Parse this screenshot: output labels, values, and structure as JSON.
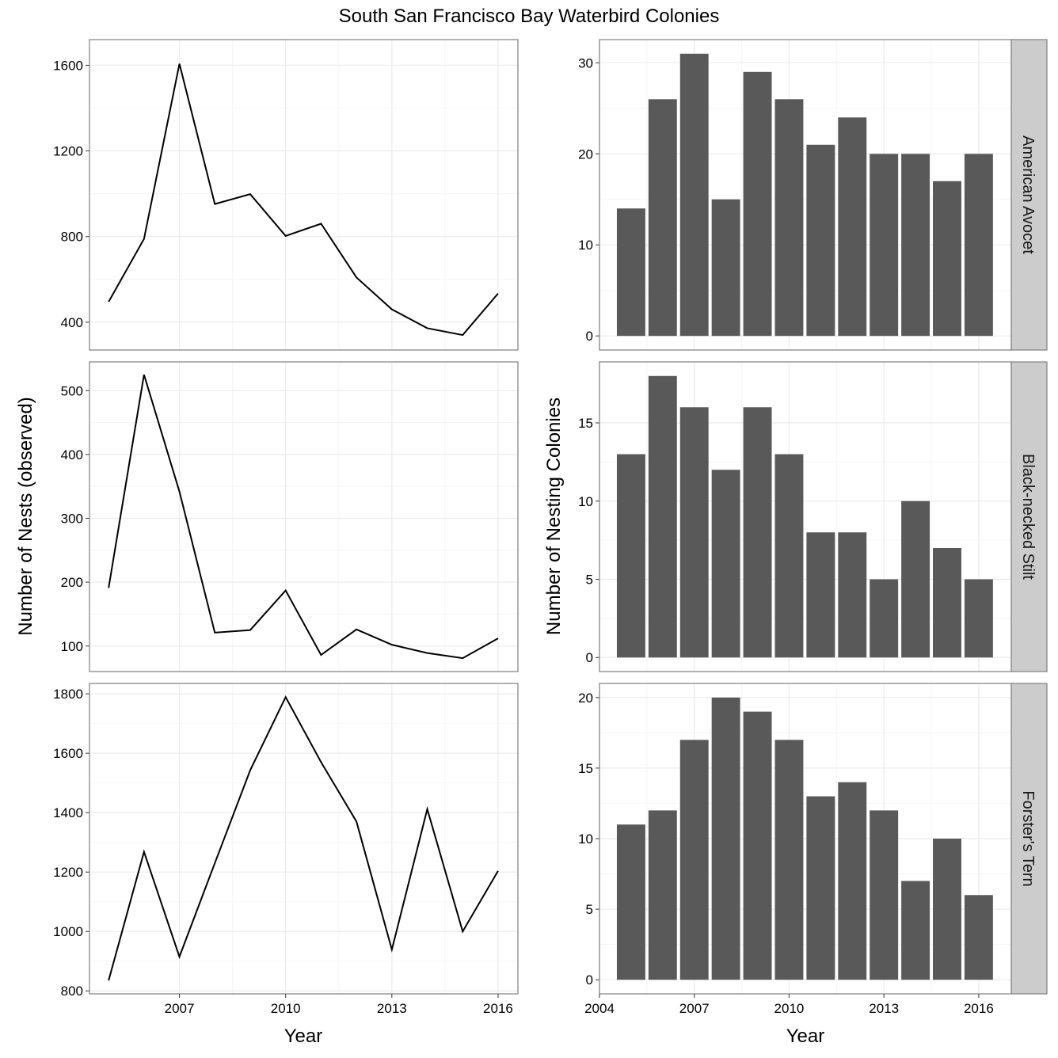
{
  "title": "South San Francisco Bay Waterbird Colonies",
  "colors": {
    "bar": "#595959",
    "line": "#000000",
    "strip": "#cccccc",
    "grid": "#ebebeb",
    "border": "#7f7f7f"
  },
  "chart_data": [
    {
      "type": "line",
      "ylabel": "Number of Nests (observed)",
      "xlabel": "Year",
      "x": [
        2005,
        2006,
        2007,
        2008,
        2009,
        2010,
        2011,
        2012,
        2013,
        2014,
        2015,
        2016
      ],
      "xticks": [
        2007,
        2010,
        2013,
        2016
      ],
      "grid": true,
      "facets": [
        {
          "species": "American Avocet",
          "values": [
            495,
            789,
            1607,
            952,
            998,
            803,
            860,
            609,
            460,
            372,
            340,
            534
          ],
          "yticks": [
            400,
            800,
            1200,
            1600
          ],
          "ylim": [
            270,
            1720
          ]
        },
        {
          "species": "Black-necked Stilt",
          "values": [
            191,
            525,
            342,
            121,
            125,
            187,
            86,
            126,
            102,
            89,
            81,
            112
          ],
          "yticks": [
            100,
            200,
            300,
            400,
            500
          ],
          "ylim": [
            60,
            545
          ]
        },
        {
          "species": "Forster's Tern",
          "values": [
            835,
            1268,
            915,
            1230,
            1543,
            1789,
            1570,
            1370,
            939,
            1412,
            1000,
            1204
          ],
          "yticks": [
            800,
            1000,
            1200,
            1400,
            1600,
            1800
          ],
          "ylim": [
            790,
            1835
          ]
        }
      ]
    },
    {
      "type": "bar",
      "ylabel": "Number of Nesting Colonies",
      "xlabel": "Year",
      "x": [
        2005,
        2006,
        2007,
        2008,
        2009,
        2010,
        2011,
        2012,
        2013,
        2014,
        2015,
        2016
      ],
      "xticks": [
        2004,
        2007,
        2010,
        2013,
        2016
      ],
      "grid": true,
      "facets": [
        {
          "species": "American Avocet",
          "values": [
            14,
            26,
            31,
            15,
            29,
            26,
            21,
            24,
            20,
            20,
            17,
            20
          ],
          "yticks": [
            0,
            10,
            20,
            30
          ],
          "ylim": [
            -1.55,
            32.55
          ]
        },
        {
          "species": "Black-necked Stilt",
          "values": [
            13,
            18,
            16,
            12,
            16,
            13,
            8,
            8,
            5,
            10,
            7,
            5
          ],
          "yticks": [
            0,
            5,
            10,
            15
          ],
          "ylim": [
            -0.9,
            18.9
          ]
        },
        {
          "species": "Forster's Tern",
          "values": [
            11,
            12,
            17,
            20,
            19,
            17,
            13,
            14,
            12,
            7,
            10,
            6
          ],
          "yticks": [
            0,
            5,
            10,
            15,
            20
          ],
          "ylim": [
            -1,
            21
          ]
        }
      ]
    }
  ]
}
